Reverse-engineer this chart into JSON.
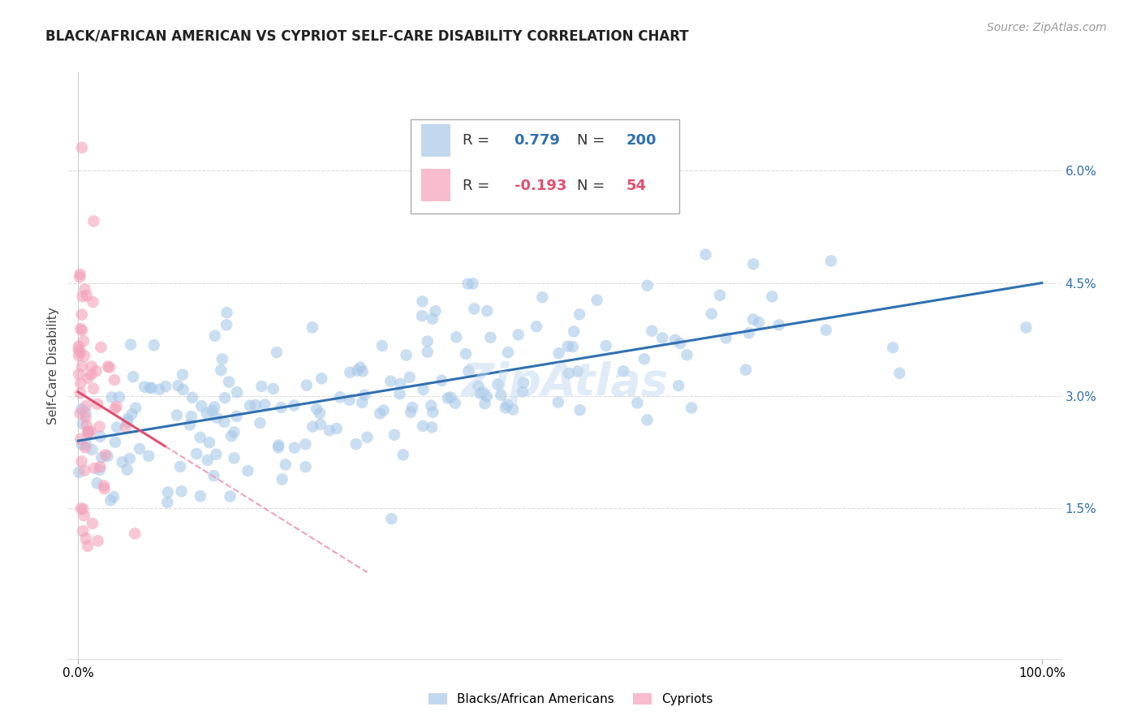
{
  "title": "BLACK/AFRICAN AMERICAN VS CYPRIOT SELF-CARE DISABILITY CORRELATION CHART",
  "source": "Source: ZipAtlas.com",
  "ylabel": "Self-Care Disability",
  "xlim": [
    0.0,
    1.0
  ],
  "ylim": [
    0.0,
    0.068
  ],
  "yticks": [
    0.015,
    0.03,
    0.045,
    0.06
  ],
  "ytick_labels": [
    "1.5%",
    "3.0%",
    "4.5%",
    "6.0%"
  ],
  "xtick_labels": [
    "0.0%",
    "100.0%"
  ],
  "blue_color": "#a8c8e8",
  "pink_color": "#f4a0b8",
  "blue_line_color": "#3070b0",
  "pink_line_color": "#e05070",
  "pink_dash_color": "#f0a0b8",
  "legend_R_blue": "0.779",
  "legend_N_blue": "200",
  "legend_R_pink": "-0.193",
  "legend_N_pink": "54",
  "watermark": "ZipAtlas",
  "title_fontsize": 12,
  "axis_label_fontsize": 11,
  "tick_fontsize": 11,
  "legend_fontsize": 13,
  "source_fontsize": 10,
  "blue_N": 200,
  "pink_N": 54,
  "blue_intercept": 0.024,
  "blue_slope": 0.021,
  "pink_intercept": 0.0305,
  "pink_slope": -0.08
}
